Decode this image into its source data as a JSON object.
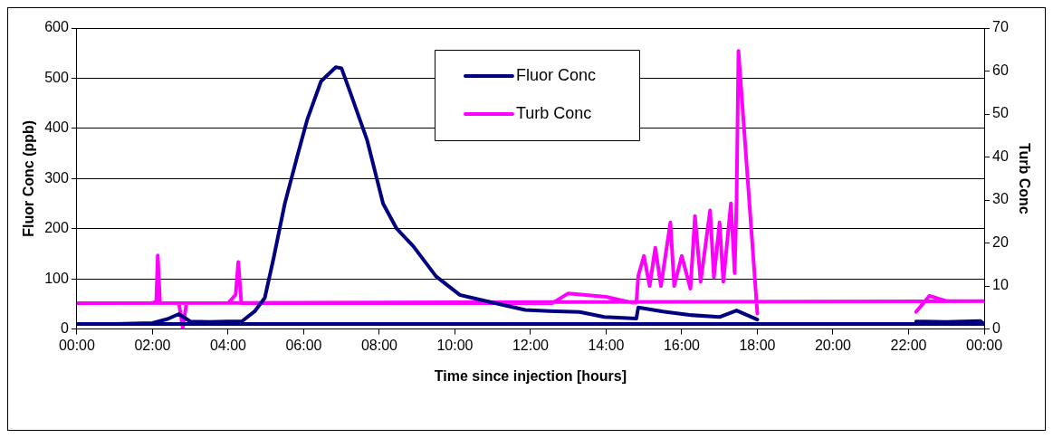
{
  "chart_data": {
    "type": "line",
    "xlabel": "Time since injection [hours]",
    "ylabel": "Fluor Conc (ppb)",
    "y2label": "Turb Conc",
    "xlim": [
      0,
      24
    ],
    "xticks": [
      {
        "value": 0,
        "label": "00:00"
      },
      {
        "value": 2,
        "label": "02:00"
      },
      {
        "value": 4,
        "label": "04:00"
      },
      {
        "value": 6,
        "label": "06:00"
      },
      {
        "value": 8,
        "label": "08:00"
      },
      {
        "value": 10,
        "label": "10:00"
      },
      {
        "value": 12,
        "label": "12:00"
      },
      {
        "value": 14,
        "label": "14:00"
      },
      {
        "value": 16,
        "label": "16:00"
      },
      {
        "value": 18,
        "label": "18:00"
      },
      {
        "value": 20,
        "label": "20:00"
      },
      {
        "value": 22,
        "label": "22:00"
      },
      {
        "value": 24,
        "label": "00:00"
      }
    ],
    "ylim": [
      0,
      600
    ],
    "yticks": [
      0,
      100,
      200,
      300,
      400,
      500,
      600
    ],
    "y2lim": [
      0,
      70
    ],
    "y2ticks": [
      0,
      10,
      20,
      30,
      40,
      50,
      60,
      70
    ],
    "grid": "y",
    "legend": "top",
    "marker": "none",
    "line_style": "solid",
    "series": [
      {
        "name": "Fluor Conc",
        "color": "#000080",
        "x": [
          22.2,
          23,
          23.9,
          24,
          0,
          1,
          2,
          2.4,
          2.7,
          3,
          3.5,
          4,
          4.36,
          4.7,
          4.97,
          5.2,
          5.5,
          5.85,
          6.1,
          6.46,
          6.85,
          7.0,
          7.24,
          7.68,
          7.85,
          8.1,
          8.46,
          8.9,
          9.5,
          10.13,
          10.8,
          11.86,
          12.5,
          13.3,
          13.95,
          14.8,
          14.85,
          15.5,
          16.2,
          17,
          17.45,
          18.0
        ],
        "values": [
          15,
          14,
          16,
          10,
          10,
          10,
          12,
          20,
          30,
          15,
          14,
          15,
          15,
          35,
          62,
          140,
          250,
          350,
          419,
          494,
          522,
          520,
          470,
          376,
          325,
          250,
          200,
          165,
          105,
          68,
          56,
          38,
          36,
          34,
          24,
          21,
          43,
          35,
          28,
          24,
          37,
          19
        ]
      },
      {
        "name": "Turb Conc",
        "color": "#ff00ff",
        "axis": "y2",
        "x": [
          22.2,
          22.55,
          23,
          24,
          0,
          1,
          2,
          2.1,
          2.14,
          2.2,
          2.7,
          2.8,
          2.9,
          4,
          4.2,
          4.27,
          4.35,
          6,
          8,
          10,
          12,
          12.57,
          13,
          14,
          14.7,
          14.8,
          14.85,
          15,
          15.15,
          15.3,
          15.45,
          15.7,
          15.8,
          16,
          16.23,
          16.35,
          16.5,
          16.75,
          16.85,
          17,
          17.1,
          17.3,
          17.4,
          17.45,
          17.5,
          18.0
        ],
        "values": [
          4,
          7.7,
          6.5,
          6.5,
          6,
          6,
          6,
          6.5,
          17.1,
          6,
          6,
          0.3,
          6,
          6,
          8,
          15.6,
          6,
          6,
          6,
          6,
          6,
          6,
          8.3,
          7.5,
          6.1,
          6.1,
          12.4,
          17,
          10,
          18.9,
          10,
          24.8,
          10,
          17,
          9.4,
          26.3,
          11,
          27.6,
          12,
          24.8,
          11,
          29.2,
          13,
          29.9,
          64.7,
          3.6
        ]
      }
    ]
  }
}
